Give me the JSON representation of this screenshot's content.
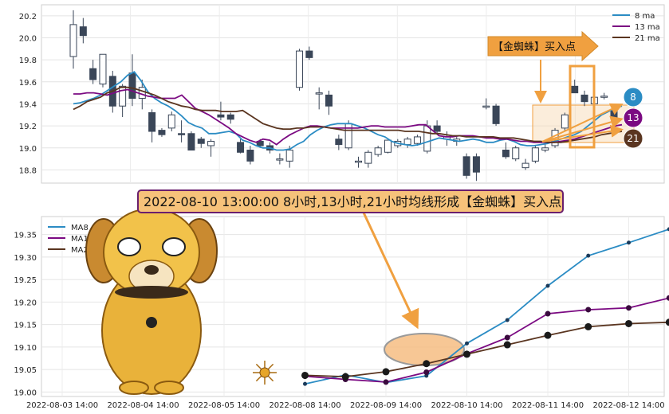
{
  "colors": {
    "ma8": "#2b8cc4",
    "ma13": "#7b0a82",
    "ma21": "#5a3520",
    "accent": "#f0a040",
    "banner_bg": "#f6c27a",
    "banner_border": "#6a1f6e",
    "bull_candle": "#ffffff",
    "bear_candle": "#3a4658"
  },
  "callout": {
    "text": "【金蜘蛛】买入点"
  },
  "banner": {
    "text": "2022-08-10 13:00:00 8小时,13小时,21小时均线形成【金蜘蛛】买入点"
  },
  "badges": [
    "8",
    "13",
    "21"
  ],
  "decorations": {
    "mascot": "spider-dog-illustration",
    "spider_icon": "golden-spider-icon"
  },
  "chart_data": [
    {
      "type": "candlestick",
      "title": "",
      "xlabel": "",
      "ylabel": "",
      "ylim": [
        18.68,
        20.3
      ],
      "yticks": [
        18.8,
        19.0,
        19.2,
        19.4,
        19.6,
        19.8,
        20.0,
        20.2
      ],
      "grid": true,
      "legend": {
        "position": "top-right",
        "entries": [
          "8 ma",
          "13 ma",
          "21 ma"
        ]
      },
      "candles": [
        {
          "o": 19.83,
          "h": 20.25,
          "l": 19.72,
          "c": 20.12
        },
        {
          "o": 20.1,
          "h": 20.18,
          "l": 19.95,
          "c": 20.02
        },
        {
          "o": 19.72,
          "h": 19.8,
          "l": 19.58,
          "c": 19.62
        },
        {
          "o": 19.58,
          "h": 19.85,
          "l": 19.55,
          "c": 19.85
        },
        {
          "o": 19.65,
          "h": 19.7,
          "l": 19.32,
          "c": 19.38
        },
        {
          "o": 19.38,
          "h": 19.58,
          "l": 19.28,
          "c": 19.56
        },
        {
          "o": 19.68,
          "h": 19.85,
          "l": 19.38,
          "c": 19.45
        },
        {
          "o": 19.45,
          "h": 19.62,
          "l": 19.35,
          "c": 19.55
        },
        {
          "o": 19.32,
          "h": 19.35,
          "l": 19.05,
          "c": 19.15
        },
        {
          "o": 19.16,
          "h": 19.18,
          "l": 19.1,
          "c": 19.12
        },
        {
          "o": 19.18,
          "h": 19.33,
          "l": 19.15,
          "c": 19.3
        },
        {
          "o": 19.13,
          "h": 19.25,
          "l": 19.05,
          "c": 19.12
        },
        {
          "o": 19.13,
          "h": 19.15,
          "l": 18.98,
          "c": 18.98
        },
        {
          "o": 19.08,
          "h": 19.1,
          "l": 19.0,
          "c": 19.04
        },
        {
          "o": 19.02,
          "h": 19.08,
          "l": 18.92,
          "c": 19.06
        },
        {
          "o": 19.3,
          "h": 19.42,
          "l": 19.25,
          "c": 19.28
        },
        {
          "o": 19.3,
          "h": 19.32,
          "l": 19.22,
          "c": 19.26
        },
        {
          "o": 19.05,
          "h": 19.08,
          "l": 18.95,
          "c": 18.96
        },
        {
          "o": 18.98,
          "h": 19.02,
          "l": 18.85,
          "c": 18.88
        },
        {
          "o": 19.06,
          "h": 19.08,
          "l": 19.0,
          "c": 19.02
        },
        {
          "o": 19.02,
          "h": 19.05,
          "l": 18.95,
          "c": 18.98
        },
        {
          "o": 18.9,
          "h": 18.95,
          "l": 18.85,
          "c": 18.9
        },
        {
          "o": 18.88,
          "h": 19.02,
          "l": 18.82,
          "c": 18.98
        },
        {
          "o": 19.55,
          "h": 19.9,
          "l": 19.52,
          "c": 19.88
        },
        {
          "o": 19.88,
          "h": 19.92,
          "l": 19.8,
          "c": 19.82
        },
        {
          "o": 19.5,
          "h": 19.55,
          "l": 19.35,
          "c": 19.5
        },
        {
          "o": 19.48,
          "h": 19.52,
          "l": 19.3,
          "c": 19.38
        },
        {
          "o": 19.08,
          "h": 19.12,
          "l": 18.98,
          "c": 19.03
        },
        {
          "o": 19.0,
          "h": 19.25,
          "l": 18.98,
          "c": 19.22
        },
        {
          "o": 18.88,
          "h": 18.92,
          "l": 18.82,
          "c": 18.88
        },
        {
          "o": 18.86,
          "h": 18.98,
          "l": 18.82,
          "c": 18.96
        },
        {
          "o": 18.94,
          "h": 19.02,
          "l": 18.92,
          "c": 19.0
        },
        {
          "o": 18.96,
          "h": 19.07,
          "l": 18.95,
          "c": 19.07
        },
        {
          "o": 19.02,
          "h": 19.08,
          "l": 19.0,
          "c": 19.06
        },
        {
          "o": 19.03,
          "h": 19.1,
          "l": 19.0,
          "c": 19.08
        },
        {
          "o": 19.04,
          "h": 19.12,
          "l": 19.02,
          "c": 19.1
        },
        {
          "o": 18.97,
          "h": 19.25,
          "l": 18.95,
          "c": 19.2
        },
        {
          "o": 19.2,
          "h": 19.25,
          "l": 19.13,
          "c": 19.15
        },
        {
          "o": 19.08,
          "h": 19.15,
          "l": 19.02,
          "c": 19.1
        },
        {
          "o": 19.06,
          "h": 19.1,
          "l": 19.02,
          "c": 19.08
        },
        {
          "o": 18.92,
          "h": 18.95,
          "l": 18.72,
          "c": 18.75
        },
        {
          "o": 18.92,
          "h": 18.95,
          "l": 18.7,
          "c": 18.78
        },
        {
          "o": 19.38,
          "h": 19.45,
          "l": 19.35,
          "c": 19.38
        },
        {
          "o": 19.38,
          "h": 19.4,
          "l": 19.2,
          "c": 19.22
        },
        {
          "o": 18.98,
          "h": 19.05,
          "l": 18.9,
          "c": 18.92
        },
        {
          "o": 18.9,
          "h": 19.02,
          "l": 18.88,
          "c": 19.0
        },
        {
          "o": 18.82,
          "h": 18.9,
          "l": 18.8,
          "c": 18.86
        },
        {
          "o": 18.88,
          "h": 19.02,
          "l": 18.86,
          "c": 19.0
        },
        {
          "o": 18.98,
          "h": 19.05,
          "l": 18.96,
          "c": 19.0
        },
        {
          "o": 19.02,
          "h": 19.18,
          "l": 19.0,
          "c": 19.16
        },
        {
          "o": 19.18,
          "h": 19.32,
          "l": 19.15,
          "c": 19.3
        },
        {
          "o": 19.56,
          "h": 19.62,
          "l": 19.5,
          "c": 19.5
        },
        {
          "o": 19.48,
          "h": 19.52,
          "l": 19.38,
          "c": 19.42
        },
        {
          "o": 19.4,
          "h": 19.48,
          "l": 19.38,
          "c": 19.46
        },
        {
          "o": 19.46,
          "h": 19.5,
          "l": 19.44,
          "c": 19.47
        },
        {
          "o": 19.35,
          "h": 19.38,
          "l": 19.25,
          "c": 19.27
        }
      ],
      "series": [
        {
          "name": "8 ma",
          "values": [
            19.4,
            19.41,
            19.43,
            19.45,
            19.48,
            19.52,
            19.56,
            19.6,
            19.66,
            19.69,
            19.61,
            19.51,
            19.45,
            19.41,
            19.38,
            19.34,
            19.29,
            19.23,
            19.2,
            19.18,
            19.13,
            19.13,
            19.14,
            19.15,
            19.13,
            19.07,
            19.05,
            19.02,
            19.0,
            19.0,
            18.98,
            18.98,
            18.99,
            19.03,
            19.06,
            19.12,
            19.16,
            19.19,
            19.21,
            19.22,
            19.22,
            19.22,
            19.2,
            19.18,
            19.15,
            19.12,
            19.1,
            19.06,
            19.04,
            19.03,
            19.02,
            19.03,
            19.05,
            19.07,
            19.09,
            19.08,
            19.07,
            19.06,
            19.07,
            19.08,
            19.07,
            19.05,
            19.05,
            19.07,
            19.08,
            19.06,
            19.03,
            19.02,
            19.02,
            19.03,
            19.04,
            19.06,
            19.08,
            19.1,
            19.12,
            19.15,
            19.2,
            19.25,
            19.3,
            19.33,
            19.36,
            19.38
          ]
        },
        {
          "name": "13 ma",
          "values": [
            19.49,
            19.49,
            19.5,
            19.5,
            19.49,
            19.48,
            19.5,
            19.52,
            19.53,
            19.51,
            19.49,
            19.47,
            19.46,
            19.45,
            19.45,
            19.45,
            19.48,
            19.42,
            19.36,
            19.33,
            19.3,
            19.26,
            19.22,
            19.18,
            19.13,
            19.1,
            19.07,
            19.05,
            19.08,
            19.07,
            19.03,
            19.08,
            19.12,
            19.15,
            19.18,
            19.2,
            19.2,
            19.19,
            19.18,
            19.18,
            19.18,
            19.18,
            19.18,
            19.19,
            19.2,
            19.2,
            19.19,
            19.19,
            19.19,
            19.19,
            19.2,
            19.21,
            19.21,
            19.16,
            19.11,
            19.1,
            19.1,
            19.11,
            19.11,
            19.11,
            19.1,
            19.09,
            19.09,
            19.08,
            19.08,
            19.07,
            19.06,
            19.06,
            19.05,
            19.05,
            19.05,
            19.05,
            19.06,
            19.07,
            19.08,
            19.1,
            19.12,
            19.14,
            19.16,
            19.18,
            19.2,
            19.21
          ]
        },
        {
          "name": "21 ma",
          "values": [
            19.35,
            19.38,
            19.42,
            19.44,
            19.46,
            19.5,
            19.52,
            19.55,
            19.55,
            19.54,
            19.52,
            19.5,
            19.48,
            19.45,
            19.42,
            19.4,
            19.38,
            19.37,
            19.35,
            19.34,
            19.34,
            19.34,
            19.33,
            19.33,
            19.33,
            19.34,
            19.3,
            19.26,
            19.22,
            19.2,
            19.18,
            19.17,
            19.17,
            19.18,
            19.18,
            19.19,
            19.19,
            19.19,
            19.18,
            19.17,
            19.16,
            19.16,
            19.16,
            19.16,
            19.16,
            19.16,
            19.16,
            19.16,
            19.16,
            19.15,
            19.15,
            19.15,
            19.14,
            19.13,
            19.13,
            19.12,
            19.11,
            19.11,
            19.1,
            19.1,
            19.1,
            19.1,
            19.1,
            19.09,
            19.09,
            19.09,
            19.08,
            19.07,
            19.06,
            19.06,
            19.05,
            19.05,
            19.05,
            19.06,
            19.07,
            19.08,
            19.09,
            19.1,
            19.12,
            19.13,
            19.14,
            19.15
          ]
        }
      ]
    },
    {
      "type": "line",
      "title": "",
      "xlabel": "",
      "ylabel": "",
      "ylim": [
        18.99,
        19.39
      ],
      "yticks": [
        19.0,
        19.05,
        19.1,
        19.15,
        19.2,
        19.25,
        19.3,
        19.35
      ],
      "grid": true,
      "legend": {
        "position": "top-left",
        "entries": [
          "MA8",
          "MA13",
          "MA21"
        ]
      },
      "x_categories": [
        "2022-08-03 14:00",
        "2022-08-04 14:00",
        "2022-08-05 14:00",
        "2022-08-08 14:00",
        "2022-08-09 14:00",
        "2022-08-10 14:00",
        "2022-08-11 14:00",
        "2022-08-12 14:00"
      ],
      "x_positions": [
        3.0,
        3.5,
        4.0,
        4.5,
        5.0,
        5.5,
        6.0,
        6.5,
        7.0,
        7.5
      ],
      "series": [
        {
          "name": "MA8",
          "values": [
            19.018,
            19.038,
            19.021,
            19.036,
            19.108,
            19.16,
            19.236,
            19.303,
            19.332,
            19.362
          ]
        },
        {
          "name": "MA13",
          "values": [
            19.035,
            19.028,
            19.022,
            19.044,
            19.085,
            19.121,
            19.174,
            19.183,
            19.187,
            19.209
          ]
        },
        {
          "name": "MA21",
          "values": [
            19.037,
            19.034,
            19.045,
            19.063,
            19.084,
            19.105,
            19.126,
            19.145,
            19.152,
            19.155
          ]
        }
      ],
      "annotations": [
        {
          "text": "2022-08-10 13:00:00 8小时,13小时,21小时均线形成【金蜘蛛】买入点",
          "x": 4.5,
          "y": 19.085
        }
      ]
    }
  ]
}
